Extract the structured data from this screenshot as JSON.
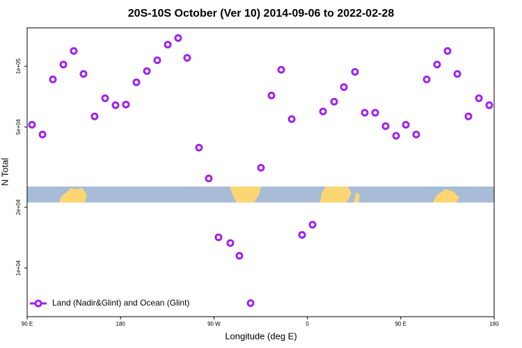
{
  "chart_data": {
    "type": "scatter",
    "title": "20S-10S October (Ver 10)   2014-09-06 to 2022-02-28",
    "xlabel": "Longitude (deg E)",
    "ylabel": "N Total",
    "xlim": [
      90,
      540
    ],
    "xticks": [
      {
        "value": 90,
        "label": "90 E"
      },
      {
        "value": 180,
        "label": "180"
      },
      {
        "value": 270,
        "label": "90 W"
      },
      {
        "value": 360,
        "label": "0"
      },
      {
        "value": 450,
        "label": "90 E"
      },
      {
        "value": 540,
        "label": "180"
      }
    ],
    "ylim": [
      5740,
      155000
    ],
    "yscale": "log",
    "yticks": [
      {
        "value": 10000,
        "label": "1e+04"
      },
      {
        "value": 20000,
        "label": "2e+04"
      },
      {
        "value": 50000,
        "label": "5e+04"
      },
      {
        "value": 100000,
        "label": "1e+05"
      }
    ],
    "legend": "bottom-left",
    "series": [
      {
        "name": "Land (Nadir&Glint) and Ocean (Glint)",
        "color": "#a020f0",
        "x": [
          94.7,
          104.8,
          114.8,
          124.9,
          134.9,
          144.3,
          155,
          165.1,
          175.2,
          185.2,
          195.3,
          205.4,
          215.4,
          225.5,
          235.5,
          244.2,
          255.6,
          265,
          274.4,
          285.8,
          294.5,
          305.3,
          315.3,
          325.4,
          334.8,
          344.9,
          354.9,
          365,
          375.1,
          385.8,
          395.2,
          405.9,
          415.3,
          425.4,
          435.4,
          445.5,
          454.9,
          464.9,
          475,
          485,
          495.1,
          504.5,
          515.2,
          525.3,
          535.3
        ],
        "values": [
          51300,
          45900,
          86000,
          102000,
          119000,
          91600,
          56400,
          69400,
          64100,
          64600,
          83300,
          94600,
          107000,
          128000,
          138000,
          110000,
          39500,
          27800,
          14200,
          13300,
          11500,
          6700,
          31400,
          71600,
          96100,
          54700,
          14600,
          16400,
          59700,
          66700,
          78800,
          93800,
          58800,
          58800,
          50500,
          45200,
          51300,
          45900,
          86000,
          102000,
          119000,
          91600,
          56400,
          69400,
          64100
        ]
      }
    ]
  }
}
